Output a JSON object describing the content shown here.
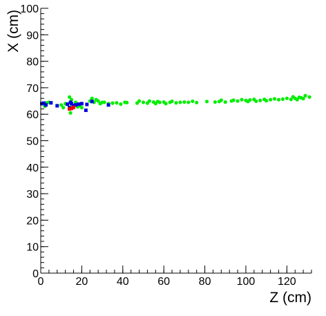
{
  "chart_data": {
    "type": "scatter",
    "title": "",
    "xlabel": "Z (cm)",
    "ylabel": "X (cm)",
    "xlim": [
      0,
      132
    ],
    "ylim": [
      0,
      100
    ],
    "x_major_ticks": [
      0,
      20,
      40,
      60,
      80,
      100,
      120
    ],
    "x_tick_labels": [
      "0",
      "20",
      "40",
      "60",
      "80",
      "100",
      "120"
    ],
    "y_major_ticks": [
      0,
      10,
      20,
      30,
      40,
      50,
      60,
      70,
      80,
      90,
      100
    ],
    "y_tick_labels": [
      "0",
      "10",
      "20",
      "30",
      "40",
      "50",
      "60",
      "70",
      "80",
      "90",
      "100"
    ],
    "x_minor_step": 4,
    "y_minor_step": 2,
    "grid": false,
    "series": [
      {
        "color": "#00ee00",
        "marker": "circle",
        "points": [
          [
            1,
            64
          ],
          [
            2,
            63
          ],
          [
            3,
            64.3
          ],
          [
            4,
            64.5
          ],
          [
            10,
            63.5
          ],
          [
            11,
            62.5
          ],
          [
            12,
            64
          ],
          [
            13,
            63.8
          ],
          [
            14,
            66.5
          ],
          [
            14.5,
            60.5
          ],
          [
            15,
            65.5
          ],
          [
            15.5,
            63
          ],
          [
            16,
            62.8
          ],
          [
            17,
            64.5
          ],
          [
            18,
            62.8
          ],
          [
            19,
            63.3
          ],
          [
            20,
            62.5
          ],
          [
            24,
            65
          ],
          [
            25,
            66
          ],
          [
            26,
            64.5
          ],
          [
            27,
            65.5
          ],
          [
            28,
            65
          ],
          [
            29,
            64
          ],
          [
            30,
            64.5
          ],
          [
            31,
            64.5
          ],
          [
            33,
            64
          ],
          [
            35,
            64.2
          ],
          [
            37,
            64.3
          ],
          [
            39,
            63.8
          ],
          [
            41,
            64.5
          ],
          [
            42,
            64.4
          ],
          [
            47,
            64.2
          ],
          [
            48,
            65
          ],
          [
            50,
            64.5
          ],
          [
            52,
            64.2
          ],
          [
            53,
            65
          ],
          [
            55,
            64.6
          ],
          [
            56,
            64
          ],
          [
            57,
            64.8
          ],
          [
            58,
            64.5
          ],
          [
            60,
            64.6
          ],
          [
            61,
            64
          ],
          [
            63,
            64.5
          ],
          [
            64,
            64.9
          ],
          [
            66,
            64.3
          ],
          [
            68,
            64.5
          ],
          [
            70,
            64.6
          ],
          [
            72,
            64.5
          ],
          [
            74,
            64.9
          ],
          [
            76,
            64.4
          ],
          [
            81,
            64.8
          ],
          [
            85,
            64.6
          ],
          [
            87,
            64.8
          ],
          [
            88,
            65.3
          ],
          [
            90,
            64.6
          ],
          [
            93,
            65
          ],
          [
            94,
            65.3
          ],
          [
            96,
            65
          ],
          [
            98,
            65.5
          ],
          [
            100,
            65.2
          ],
          [
            101,
            64.8
          ],
          [
            102,
            65.4
          ],
          [
            104,
            65.6
          ],
          [
            105,
            64.9
          ],
          [
            107,
            65.2
          ],
          [
            109,
            65.6
          ],
          [
            110,
            65.1
          ],
          [
            112,
            65.5
          ],
          [
            114,
            65.8
          ],
          [
            116,
            65.5
          ],
          [
            118,
            65.7
          ],
          [
            120,
            66
          ],
          [
            122,
            65.6
          ],
          [
            123,
            66.6
          ],
          [
            124,
            66
          ],
          [
            125,
            65.5
          ],
          [
            126,
            66.4
          ],
          [
            127,
            66.2
          ],
          [
            128,
            65.9
          ],
          [
            129,
            67
          ],
          [
            131,
            66.5
          ]
        ]
      },
      {
        "color": "#0000dd",
        "marker": "square",
        "points": [
          [
            0.5,
            64
          ],
          [
            1.5,
            64.2
          ],
          [
            2.5,
            63.5
          ],
          [
            5,
            64.3
          ],
          [
            8,
            63.2
          ],
          [
            13,
            63.8
          ],
          [
            14,
            62.5
          ],
          [
            14.5,
            64.5
          ],
          [
            15,
            64
          ],
          [
            16,
            63.3
          ],
          [
            17,
            63.5
          ],
          [
            18.5,
            63.8
          ],
          [
            20,
            64
          ],
          [
            22,
            61.5
          ],
          [
            22.5,
            63.7
          ],
          [
            25,
            64.8
          ],
          [
            33,
            63.5
          ]
        ]
      },
      {
        "color": "#ee0000",
        "marker": "square",
        "points": [
          [
            14,
            62
          ],
          [
            15,
            62.2
          ],
          [
            16,
            62.6
          ]
        ]
      }
    ]
  }
}
